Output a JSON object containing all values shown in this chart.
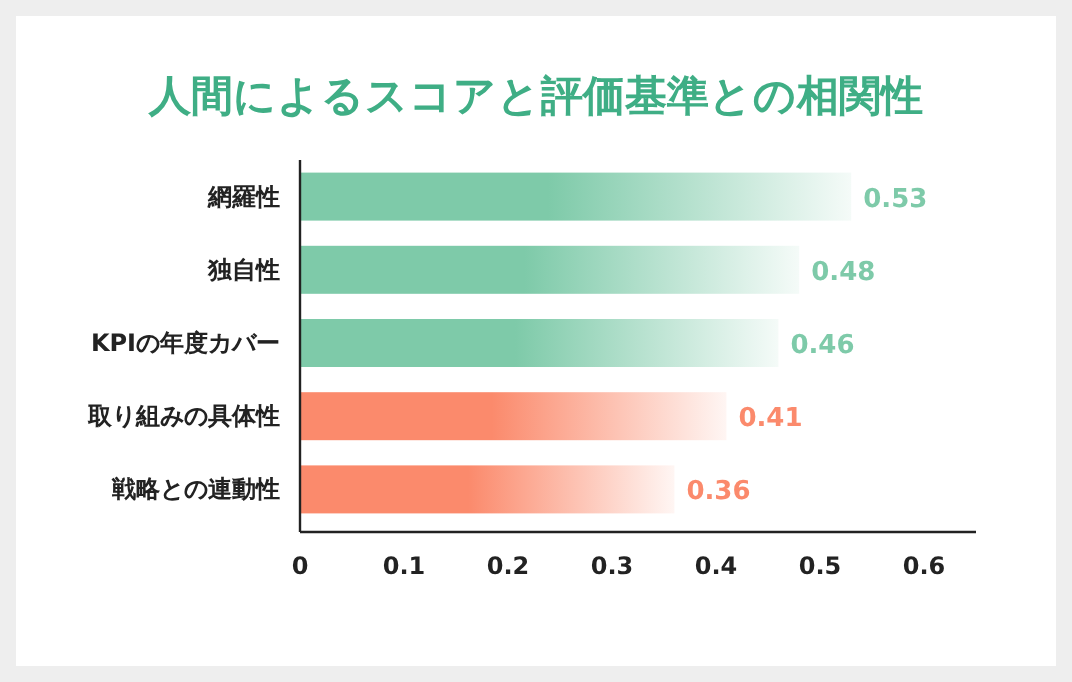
{
  "chart_data": {
    "type": "bar",
    "orientation": "horizontal",
    "title": "人間によるスコアと評価基準との相関性",
    "categories": [
      "網羅性",
      "独自性",
      "KPIの年度カバー",
      "取り組みの具体性",
      "戦略との連動性"
    ],
    "values": [
      0.53,
      0.48,
      0.46,
      0.41,
      0.36
    ],
    "colors": [
      "#7ecaa9",
      "#7ecaa9",
      "#7ecaa9",
      "#fb8a6c",
      "#fb8a6c"
    ],
    "xlim": [
      0,
      0.65
    ],
    "xticks": [
      0,
      0.1,
      0.2,
      0.3,
      0.4,
      0.5,
      0.6
    ],
    "data_labels": true,
    "grid": false
  }
}
